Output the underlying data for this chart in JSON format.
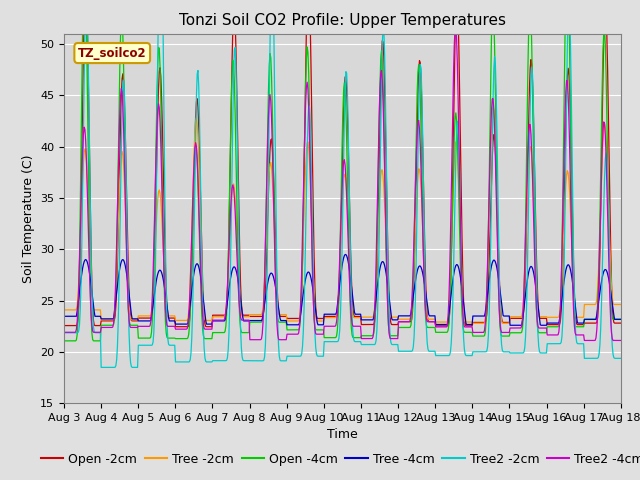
{
  "title": "Tonzi Soil CO2 Profile: Upper Temperatures",
  "xlabel": "Time",
  "ylabel": "Soil Temperature (C)",
  "ylim": [
    15,
    51
  ],
  "yticks": [
    15,
    20,
    25,
    30,
    35,
    40,
    45,
    50
  ],
  "n_days": 15,
  "n_per_day": 48,
  "colors": {
    "Open -2cm": "#cc0000",
    "Tree -2cm": "#ff9900",
    "Open -4cm": "#00cc00",
    "Tree -4cm": "#0000cc",
    "Tree2 -2cm": "#00cccc",
    "Tree2 -4cm": "#cc00cc"
  },
  "series_params": {
    "Open -2cm": {
      "base_min": 23.0,
      "base_max": 49.5,
      "phase": 0.0,
      "sharpness": 3.0,
      "amp_var": 0.15,
      "min_var": 0.5
    },
    "Tree -2cm": {
      "base_min": 23.5,
      "base_max": 40.0,
      "phase": 0.12,
      "sharpness": 2.5,
      "amp_var": 0.12,
      "min_var": 0.5
    },
    "Open -4cm": {
      "base_min": 22.0,
      "base_max": 50.0,
      "phase": 0.18,
      "sharpness": 3.5,
      "amp_var": 0.18,
      "min_var": 0.6
    },
    "Tree -4cm": {
      "base_min": 23.0,
      "base_max": 28.5,
      "phase": 0.0,
      "sharpness": 1.2,
      "amp_var": 0.1,
      "min_var": 0.3
    },
    "Tree2 -2cm": {
      "base_min": 20.0,
      "base_max": 50.0,
      "phase": -0.12,
      "sharpness": 4.0,
      "amp_var": 0.2,
      "min_var": 1.0
    },
    "Tree2 -4cm": {
      "base_min": 22.0,
      "base_max": 43.0,
      "phase": 0.22,
      "sharpness": 2.8,
      "amp_var": 0.15,
      "min_var": 0.6
    }
  },
  "legend_label": "TZ_soilco2",
  "fig_bg_color": "#e0e0e0",
  "plot_bg_color": "#d8d8d8",
  "grid_color": "#ffffff",
  "title_fontsize": 11,
  "axis_fontsize": 9,
  "tick_fontsize": 8,
  "legend_fontsize": 9
}
